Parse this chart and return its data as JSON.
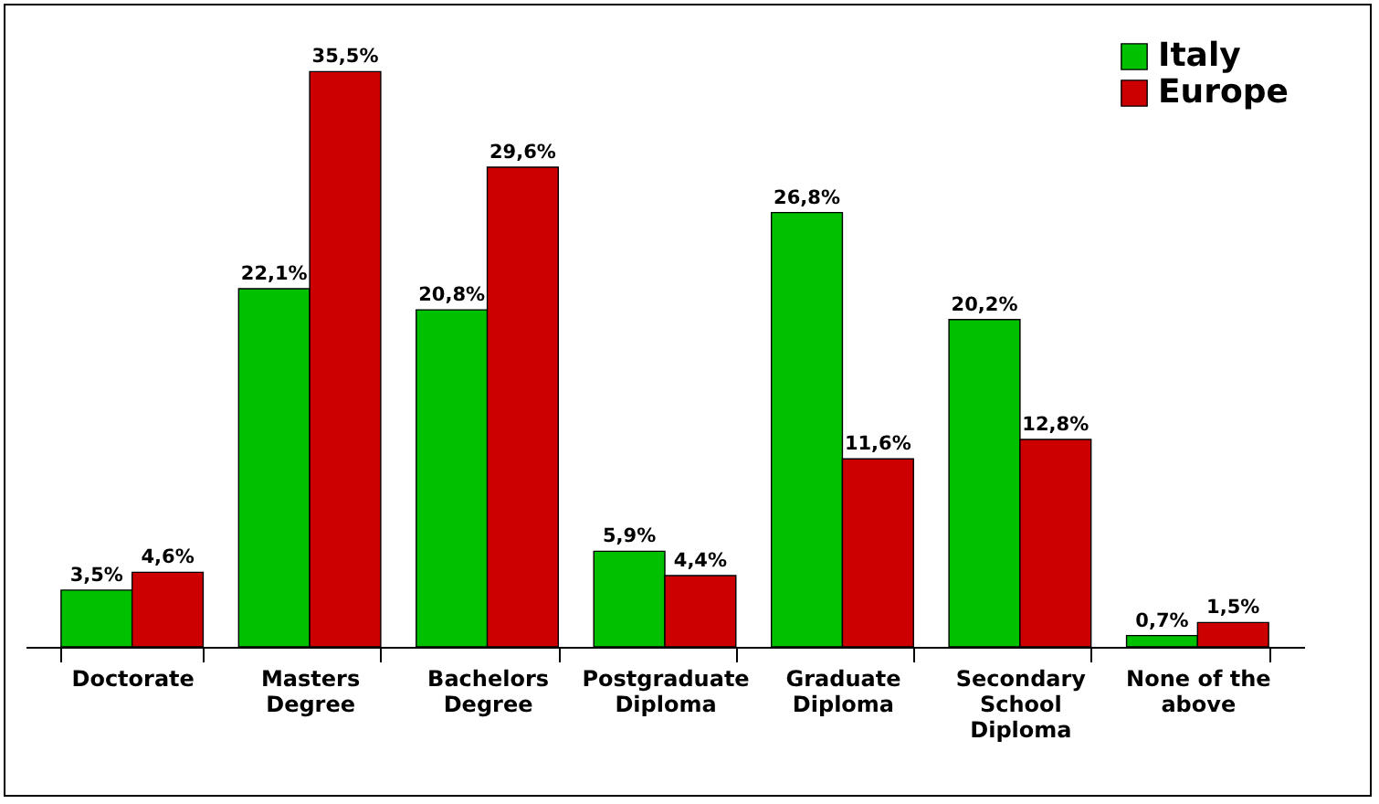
{
  "chart_data": {
    "type": "bar",
    "categories": [
      "Doctorate",
      "Masters Degree",
      "Bachelors Degree",
      "Postgraduate Diploma",
      "Graduate Diploma",
      "Secondary School Diploma",
      "None of the above"
    ],
    "series": [
      {
        "name": "Italy",
        "color": "#00c000",
        "values": [
          3.5,
          22.1,
          20.8,
          5.9,
          26.8,
          20.2,
          0.7
        ],
        "value_labels": [
          "3,5%",
          "22,1%",
          "20,8%",
          "5,9%",
          "26,8%",
          "20,2%",
          "0,7%"
        ]
      },
      {
        "name": "Europe",
        "color": "#cc0000",
        "values": [
          4.6,
          35.5,
          29.6,
          4.4,
          11.6,
          12.8,
          1.5
        ],
        "value_labels": [
          "4,6%",
          "35,5%",
          "29,6%",
          "4,4%",
          "11,6%",
          "12,8%",
          "1,5%"
        ]
      }
    ],
    "legend": "top right",
    "grid": false
  }
}
